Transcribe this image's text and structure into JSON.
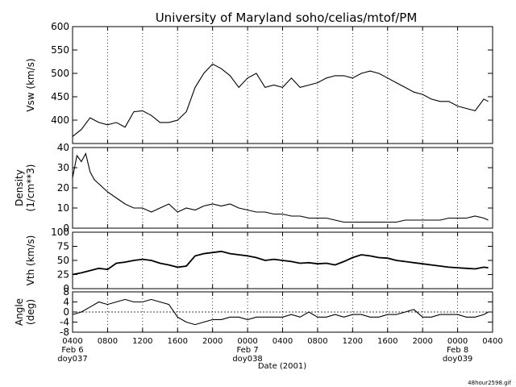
{
  "title": "University of Maryland  soho/celias/mtof/PM",
  "footnote": "48hour2598.gif",
  "x_axis": {
    "label": "Date (2001)",
    "ticks": [
      "0400",
      "0800",
      "1200",
      "1600",
      "2000",
      "0000",
      "0400",
      "0800",
      "1200",
      "1600",
      "2000",
      "0000",
      "0400"
    ],
    "day_labels": [
      {
        "date": "Feb 6",
        "doy": "doy037"
      },
      {
        "date": "Feb 7",
        "doy": "doy038"
      },
      {
        "date": "Feb 8",
        "doy": "doy039"
      }
    ]
  },
  "chart_data": [
    {
      "type": "line",
      "ylabel": "Vsw (km/s)",
      "ylim": [
        350,
        600
      ],
      "yticks": [
        400,
        450,
        500,
        550,
        600
      ],
      "xlim_hours": [
        0,
        48
      ],
      "grid": "vertical dotted",
      "x": [
        0,
        1,
        2,
        3,
        4,
        5,
        6,
        7,
        8,
        9,
        10,
        11,
        12,
        13,
        14,
        15,
        16,
        17,
        18,
        19,
        20,
        21,
        22,
        23,
        24,
        25,
        26,
        27,
        28,
        29,
        30,
        31,
        32,
        33,
        34,
        35,
        36,
        37,
        38,
        39,
        40,
        41,
        42,
        43,
        44,
        45,
        46,
        47,
        47.5
      ],
      "y": [
        365,
        380,
        405,
        395,
        390,
        395,
        385,
        418,
        420,
        410,
        395,
        395,
        400,
        418,
        470,
        500,
        520,
        510,
        495,
        470,
        490,
        500,
        470,
        475,
        470,
        490,
        470,
        475,
        480,
        490,
        495,
        495,
        490,
        500,
        505,
        500,
        490,
        480,
        470,
        460,
        455,
        445,
        440,
        440,
        430,
        425,
        420,
        445,
        440
      ]
    },
    {
      "type": "line",
      "ylabel": "Density (1/cm**3)",
      "ylim": [
        0,
        40
      ],
      "yticks": [
        0,
        10,
        20,
        30,
        40
      ],
      "xlim_hours": [
        0,
        48
      ],
      "x": [
        0,
        0.5,
        1,
        1.5,
        2,
        2.5,
        3,
        4,
        5,
        6,
        7,
        8,
        9,
        10,
        11,
        12,
        13,
        14,
        15,
        16,
        17,
        18,
        19,
        20,
        21,
        22,
        23,
        24,
        25,
        26,
        27,
        28,
        29,
        30,
        31,
        32,
        33,
        34,
        35,
        36,
        37,
        38,
        39,
        40,
        41,
        42,
        43,
        44,
        45,
        46,
        47,
        47.5
      ],
      "y": [
        25,
        36,
        33,
        37,
        28,
        24,
        22,
        18,
        15,
        12,
        10,
        10,
        8,
        10,
        12,
        8,
        10,
        9,
        11,
        12,
        11,
        12,
        10,
        9,
        8,
        8,
        7,
        7,
        6,
        6,
        5,
        5,
        5,
        4,
        3,
        3,
        3,
        3,
        3,
        3,
        3,
        4,
        4,
        4,
        4,
        4,
        5,
        5,
        5,
        6,
        5,
        4
      ]
    },
    {
      "type": "line",
      "ylabel": "Vth (km/s)",
      "ylim": [
        0,
        100
      ],
      "yticks": [
        0,
        25,
        50,
        75,
        100
      ],
      "xlim_hours": [
        0,
        48
      ],
      "x": [
        0,
        1,
        2,
        3,
        4,
        5,
        6,
        7,
        8,
        9,
        10,
        11,
        12,
        13,
        14,
        15,
        16,
        17,
        18,
        19,
        20,
        21,
        22,
        23,
        24,
        25,
        26,
        27,
        28,
        29,
        30,
        31,
        32,
        33,
        34,
        35,
        36,
        37,
        38,
        39,
        40,
        41,
        42,
        43,
        44,
        45,
        46,
        47,
        47.5
      ],
      "y": [
        25,
        28,
        32,
        36,
        34,
        45,
        47,
        50,
        52,
        50,
        45,
        42,
        38,
        40,
        58,
        62,
        64,
        66,
        62,
        60,
        58,
        55,
        50,
        52,
        50,
        48,
        45,
        46,
        44,
        45,
        42,
        48,
        55,
        60,
        58,
        55,
        54,
        50,
        48,
        46,
        44,
        42,
        40,
        38,
        37,
        36,
        35,
        38,
        37
      ]
    },
    {
      "type": "line",
      "ylabel": "Angle (deg)",
      "ylim": [
        -8,
        8
      ],
      "yticks": [
        -8,
        -4,
        0,
        4,
        8
      ],
      "xlim_hours": [
        0,
        48
      ],
      "x": [
        0,
        1,
        2,
        3,
        4,
        5,
        6,
        7,
        8,
        9,
        10,
        11,
        12,
        13,
        14,
        15,
        16,
        17,
        18,
        19,
        20,
        21,
        22,
        23,
        24,
        25,
        26,
        27,
        28,
        29,
        30,
        31,
        32,
        33,
        34,
        35,
        36,
        37,
        38,
        39,
        40,
        41,
        42,
        43,
        44,
        45,
        46,
        47,
        47.5
      ],
      "y": [
        -1,
        0,
        2,
        4,
        3,
        4,
        5,
        4,
        4,
        5,
        4,
        3,
        -2,
        -4,
        -5,
        -4,
        -3,
        -3,
        -2,
        -2,
        -3,
        -2,
        -2,
        -2,
        -2,
        -1,
        -2,
        0,
        -2,
        -2,
        -1,
        -2,
        -1,
        -1,
        -2,
        -2,
        -1,
        -1,
        0,
        1,
        -2,
        -2,
        -1,
        -1,
        -1,
        -2,
        -2,
        -1,
        0
      ]
    }
  ]
}
